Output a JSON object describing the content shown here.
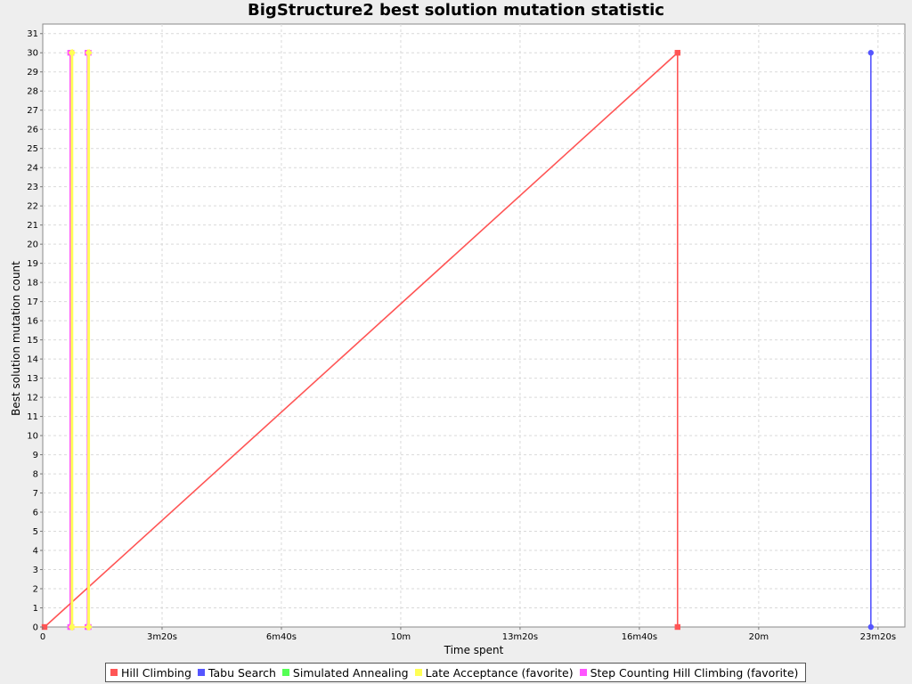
{
  "chart_data": {
    "type": "line",
    "title": "BigStructure2 best solution mutation statistic",
    "xlabel": "Time spent",
    "ylabel": "Best solution mutation count",
    "x_unit": "seconds",
    "xlim": [
      0,
      1445
    ],
    "ylim": [
      0,
      31.5
    ],
    "x_ticks": [
      0,
      200,
      400,
      600,
      800,
      1000,
      1200,
      1400
    ],
    "x_tick_labels": [
      "0",
      "3m20s",
      "6m40s",
      "10m",
      "13m20s",
      "16m40s",
      "20m",
      "23m20s"
    ],
    "y_ticks": [
      0,
      1,
      2,
      3,
      4,
      5,
      6,
      7,
      8,
      9,
      10,
      11,
      12,
      13,
      14,
      15,
      16,
      17,
      18,
      19,
      20,
      21,
      22,
      23,
      24,
      25,
      26,
      27,
      28,
      29,
      30,
      31
    ],
    "grid": true,
    "legend_position": "bottom",
    "series": [
      {
        "name": "Hill Climbing",
        "color": "#ff5555",
        "marker": "square",
        "points": [
          [
            3,
            0
          ],
          [
            1064,
            30
          ],
          [
            1064,
            0
          ]
        ]
      },
      {
        "name": "Tabu Search",
        "color": "#5555ff",
        "marker": "circle",
        "points": [
          [
            1388,
            30
          ],
          [
            1388,
            0
          ]
        ]
      },
      {
        "name": "Simulated Annealing",
        "color": "#55ff55",
        "marker": "triangle",
        "points": []
      },
      {
        "name": "Late Acceptance (favorite)",
        "color": "#ffff55",
        "marker": "diamond",
        "points": [
          [
            48,
            0
          ],
          [
            48,
            30
          ],
          [
            50,
            30
          ],
          [
            50,
            0
          ],
          [
            76,
            0
          ],
          [
            76,
            30
          ],
          [
            78,
            30
          ],
          [
            78,
            0
          ]
        ]
      },
      {
        "name": "Step Counting Hill Climbing (favorite)",
        "color": "#ff55ff",
        "marker": "square",
        "points": [
          [
            46,
            0
          ],
          [
            46,
            30
          ],
          [
            48,
            30
          ],
          [
            48,
            0
          ],
          [
            75,
            0
          ],
          [
            75,
            30
          ],
          [
            77,
            30
          ],
          [
            77,
            0
          ]
        ]
      }
    ]
  }
}
